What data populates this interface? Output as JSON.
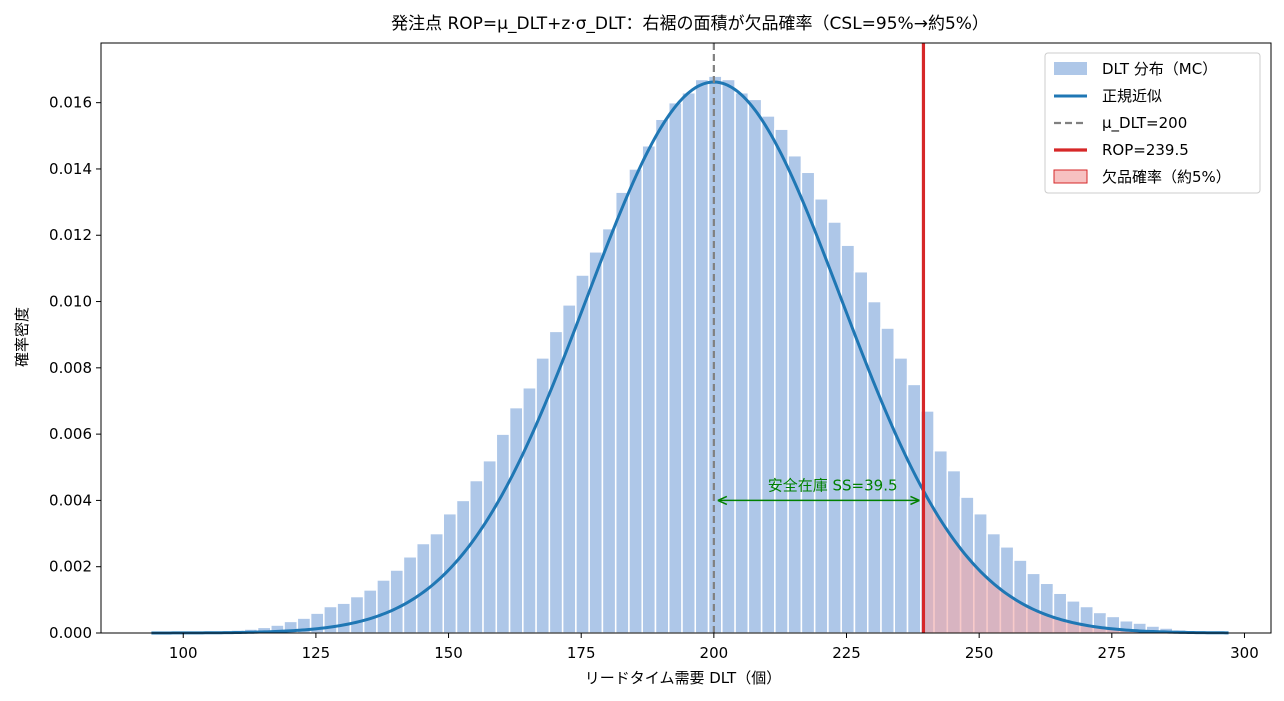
{
  "chart_data": {
    "type": "bar",
    "title": "発注点 ROP=μ_DLT+z·σ_DLT：右裾の面積が欠品確率（CSL=95%→約5%）",
    "xlabel": "リードタイム需要 DLT（個）",
    "ylabel": "確率密度",
    "xlim": [
      84.5,
      305
    ],
    "ylim": [
      0,
      0.0178
    ],
    "x_ticks": [
      100,
      125,
      150,
      175,
      200,
      225,
      250,
      275,
      300
    ],
    "x_tick_labels": [
      "100",
      "125",
      "150",
      "175",
      "200",
      "225",
      "250",
      "275",
      "300"
    ],
    "y_ticks": [
      0,
      0.002,
      0.004,
      0.006,
      0.008,
      0.01,
      0.012,
      0.014,
      0.016
    ],
    "y_tick_labels": [
      "0.000",
      "0.002",
      "0.004",
      "0.006",
      "0.008",
      "0.010",
      "0.012",
      "0.014",
      "0.016"
    ],
    "grid": false,
    "legend_position": "top-right",
    "histogram": {
      "name": "DLT 分布（MC）",
      "color": "#aec7e8",
      "bin_width": 2.5,
      "bin_starts": [
        94,
        96.5,
        99,
        101.5,
        104,
        106.5,
        109,
        111.5,
        114,
        116.5,
        119,
        121.5,
        124,
        126.5,
        129,
        131.5,
        134,
        136.5,
        139,
        141.5,
        144,
        146.5,
        149,
        151.5,
        154,
        156.5,
        159,
        161.5,
        164,
        166.5,
        169,
        171.5,
        174,
        176.5,
        179,
        181.5,
        184,
        186.5,
        189,
        191.5,
        194,
        196.5,
        199,
        201.5,
        204,
        206.5,
        209,
        211.5,
        214,
        216.5,
        219,
        221.5,
        224,
        226.5,
        229,
        231.5,
        234,
        236.5,
        239,
        241.5,
        244,
        246.5,
        249,
        251.5,
        254,
        256.5,
        259,
        261.5,
        264,
        266.5,
        269,
        271.5,
        274,
        276.5,
        279,
        281.5,
        284,
        286.5,
        289,
        291.5,
        294
      ],
      "values": [
        1e-05,
        1e-05,
        2e-05,
        3e-05,
        4e-05,
        6e-05,
        9e-05,
        0.00012,
        0.00017,
        0.00024,
        0.00035,
        0.00045,
        0.0006,
        0.0008,
        0.0009,
        0.0011,
        0.0013,
        0.0016,
        0.0019,
        0.0023,
        0.0027,
        0.003,
        0.0036,
        0.004,
        0.0046,
        0.0052,
        0.006,
        0.0068,
        0.0074,
        0.0083,
        0.0091,
        0.0099,
        0.0108,
        0.0115,
        0.0122,
        0.0133,
        0.014,
        0.0147,
        0.0155,
        0.016,
        0.0163,
        0.0167,
        0.0168,
        0.0167,
        0.0163,
        0.0161,
        0.0156,
        0.0152,
        0.0144,
        0.0139,
        0.0131,
        0.0124,
        0.0117,
        0.0109,
        0.01,
        0.0092,
        0.0083,
        0.0075,
        0.0067,
        0.0055,
        0.0049,
        0.0041,
        0.0036,
        0.003,
        0.0026,
        0.0022,
        0.0018,
        0.0015,
        0.0012,
        0.00097,
        0.0008,
        0.00062,
        0.0005,
        0.00037,
        0.0003,
        0.00021,
        0.00015,
        0.0001,
        7e-05,
        5e-05,
        3e-05
      ]
    },
    "normal_fit": {
      "name": "正規近似",
      "mean": 200,
      "std": 24,
      "x_range": [
        94,
        297
      ],
      "color": "#1f77b4"
    },
    "mean_line": {
      "name": "μ_DLT=200",
      "x": 200,
      "color": "#808080"
    },
    "rop_line": {
      "name": "ROP=239.5",
      "x": 239.5,
      "color": "#d62728"
    },
    "shortage_area": {
      "name": "欠品確率（約5%）",
      "from": 239.5,
      "color": "#f4a6a6"
    },
    "annotation": {
      "text": "安全在庫 SS=39.5",
      "x_from": 200,
      "x_to": 239.5,
      "y": 0.004,
      "color": "#008000"
    }
  }
}
